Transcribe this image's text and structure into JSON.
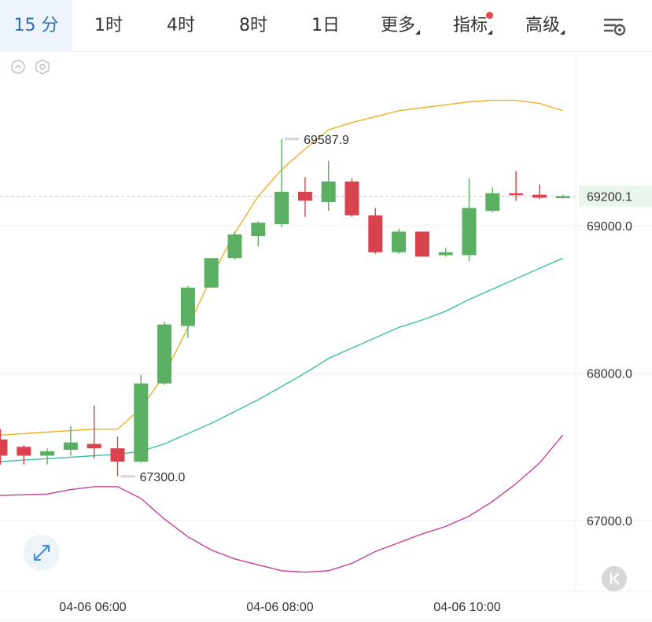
{
  "toolbar": {
    "tabs": [
      {
        "label": "15 分",
        "active": true
      },
      {
        "label": "1时"
      },
      {
        "label": "4时"
      },
      {
        "label": "8时"
      },
      {
        "label": "1日"
      },
      {
        "label": "更多"
      },
      {
        "label": "指标"
      },
      {
        "label": "高级"
      }
    ],
    "settings_icon": "chart-settings-icon"
  },
  "colors": {
    "up": "#5aaf63",
    "down": "#d9434f",
    "upper_band": "#e8b12a",
    "middle_band": "#3cc0a2",
    "lower_band": "#c63e9a",
    "accent": "#2a6fb6",
    "last_price_bg": "#eaf6ec",
    "last_price_text": "#3c9a53"
  },
  "chart_data": {
    "type": "candlestick",
    "interval": "15 分",
    "ylim": [
      66500,
      69900
    ],
    "yticks": [
      "69000.0",
      "68000.0",
      "67000.0"
    ],
    "xticks": [
      "04-06 06:00",
      "04-06 08:00",
      "04-06 10:00"
    ],
    "candles": [
      {
        "open": 67550,
        "close": 67440,
        "high": 67620,
        "low": 67380
      },
      {
        "open": 67500,
        "close": 67440,
        "high": 67510,
        "low": 67380
      },
      {
        "open": 67440,
        "close": 67470,
        "high": 67490,
        "low": 67380
      },
      {
        "open": 67480,
        "close": 67530,
        "high": 67640,
        "low": 67440
      },
      {
        "open": 67520,
        "close": 67490,
        "high": 67780,
        "low": 67420
      },
      {
        "open": 67490,
        "close": 67400,
        "high": 67570,
        "low": 67300
      },
      {
        "open": 67400,
        "close": 67930,
        "high": 67990,
        "low": 67390
      },
      {
        "open": 67930,
        "close": 68330,
        "high": 68350,
        "low": 67920
      },
      {
        "open": 68320,
        "close": 68580,
        "high": 68590,
        "low": 68240
      },
      {
        "open": 68580,
        "close": 68780,
        "high": 68780,
        "low": 68580
      },
      {
        "open": 68780,
        "close": 68940,
        "high": 68960,
        "low": 68770
      },
      {
        "open": 68930,
        "close": 69020,
        "high": 69030,
        "low": 68860
      },
      {
        "open": 69010,
        "close": 69230,
        "high": 69587.9,
        "low": 68990
      },
      {
        "open": 69230,
        "close": 69170,
        "high": 69330,
        "low": 69060
      },
      {
        "open": 69160,
        "close": 69300,
        "high": 69440,
        "low": 69100
      },
      {
        "open": 69300,
        "close": 69070,
        "high": 69320,
        "low": 69060
      },
      {
        "open": 69070,
        "close": 68820,
        "high": 69120,
        "low": 68810
      },
      {
        "open": 68820,
        "close": 68960,
        "high": 68980,
        "low": 68810
      },
      {
        "open": 68960,
        "close": 68790,
        "high": 68960,
        "low": 68790
      },
      {
        "open": 68800,
        "close": 68820,
        "high": 68850,
        "low": 68790
      },
      {
        "open": 68800,
        "close": 69120,
        "high": 69320,
        "low": 68760
      },
      {
        "open": 69100,
        "close": 69220,
        "high": 69260,
        "low": 69090
      },
      {
        "open": 69220,
        "close": 69210,
        "high": 69370,
        "low": 69170
      },
      {
        "open": 69210,
        "close": 69190,
        "high": 69280,
        "low": 69180
      },
      {
        "open": 69200,
        "close": 69200.1,
        "high": 69210,
        "low": 69190
      }
    ],
    "bands": {
      "upper": [
        67580,
        67590,
        67600,
        67610,
        67620,
        67620,
        67760,
        67990,
        68310,
        68650,
        68950,
        69200,
        69380,
        69520,
        69650,
        69700,
        69740,
        69780,
        69800,
        69820,
        69840,
        69850,
        69850,
        69830,
        69780
      ],
      "middle": [
        67400,
        67410,
        67420,
        67430,
        67440,
        67450,
        67470,
        67520,
        67590,
        67660,
        67740,
        67820,
        67910,
        68000,
        68100,
        68170,
        68240,
        68310,
        68360,
        68420,
        68500,
        68570,
        68640,
        68710,
        68780
      ],
      "lower": [
        67170,
        67175,
        67180,
        67210,
        67230,
        67230,
        67150,
        67010,
        66890,
        66800,
        66740,
        66700,
        66660,
        66650,
        66660,
        66710,
        66790,
        66850,
        66910,
        66960,
        67030,
        67130,
        67250,
        67390,
        67580
      ]
    },
    "annotations": {
      "high_label": "69587.9",
      "low_label": "67300.0",
      "last_price": "69200.1"
    }
  }
}
